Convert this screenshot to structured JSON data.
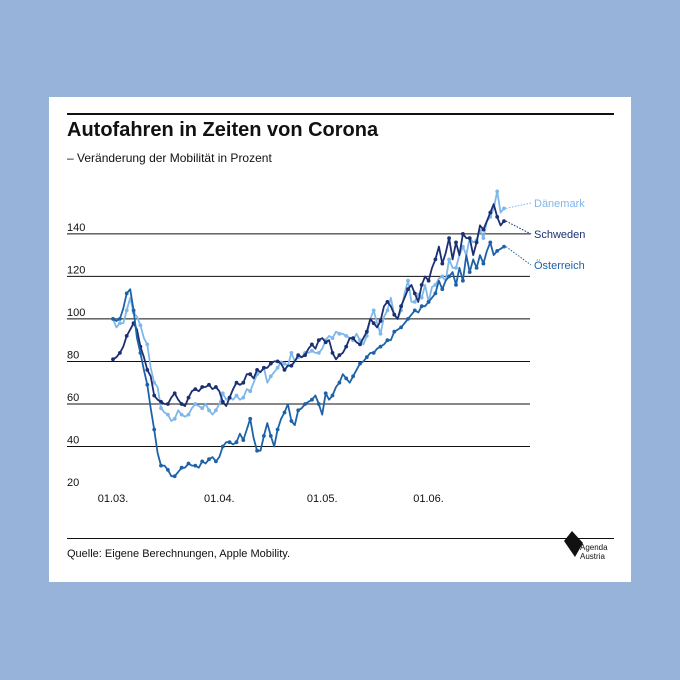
{
  "chart_data": {
    "type": "line",
    "title": "Autofahren in Zeiten von Corona",
    "subtitle": "– Veränderung der Mobilität in Prozent",
    "source": "Quelle: Eigene Berechnungen, Apple Mobility.",
    "ylim": [
      20,
      150
    ],
    "yticks": [
      20,
      40,
      60,
      80,
      100,
      120,
      140
    ],
    "xticks": [
      {
        "label": "01.03.",
        "day": 0
      },
      {
        "label": "01.04.",
        "day": 31
      },
      {
        "label": "01.05.",
        "day": 61
      },
      {
        "label": "01.06.",
        "day": 92
      }
    ],
    "grid": true,
    "legend": "right, at line ends",
    "series": [
      {
        "name": "Dänemark",
        "color": "#7fb7ea",
        "values": [
          100,
          96,
          98,
          98,
          104,
          110,
          103,
          101,
          97,
          91,
          88,
          77,
          70,
          68,
          58,
          56,
          55,
          52,
          53,
          57,
          55,
          54,
          55,
          58,
          60,
          59,
          58,
          60,
          57,
          55,
          57,
          60,
          65,
          62,
          63,
          62,
          64,
          62,
          63,
          67,
          66,
          70,
          74,
          75,
          77,
          70,
          73,
          75,
          77,
          80,
          79,
          78,
          84,
          80,
          82,
          82,
          84,
          84,
          85,
          84,
          84,
          86,
          90,
          92,
          91,
          94,
          93,
          93,
          92,
          91,
          90,
          93,
          90,
          88,
          92,
          100,
          104,
          98,
          93,
          101,
          104,
          110,
          102,
          100,
          104,
          112,
          118,
          108,
          108,
          112,
          110,
          116,
          108,
          115,
          116,
          119,
          120,
          118,
          128,
          124,
          124,
          130,
          134,
          130,
          138,
          136,
          137,
          142,
          138,
          146,
          148,
          152,
          160,
          150,
          152
        ]
      },
      {
        "name": "Schweden",
        "color": "#1b2f73",
        "values": [
          81,
          82,
          84,
          87,
          92,
          95,
          98,
          95,
          87,
          82,
          76,
          73,
          64,
          62,
          61,
          60,
          60,
          63,
          65,
          62,
          60,
          59,
          63,
          66,
          67,
          66,
          68,
          68,
          69,
          67,
          68,
          66,
          61,
          59,
          63,
          67,
          70,
          69,
          70,
          74,
          74,
          72,
          76,
          75,
          77,
          77,
          79,
          80,
          80,
          79,
          76,
          78,
          78,
          80,
          83,
          82,
          83,
          86,
          88,
          86,
          90,
          91,
          89,
          90,
          84,
          81,
          83,
          84,
          87,
          91,
          91,
          89,
          88,
          91,
          94,
          100,
          98,
          96,
          99,
          106,
          108,
          106,
          102,
          100,
          106,
          110,
          114,
          116,
          112,
          108,
          116,
          120,
          118,
          124,
          128,
          134,
          126,
          131,
          138,
          128,
          136,
          130,
          140,
          138,
          138,
          130,
          136,
          144,
          142,
          146,
          150,
          154,
          148,
          144,
          146
        ]
      },
      {
        "name": "Österreich",
        "color": "#1d62a8",
        "values": [
          100,
          99,
          100,
          105,
          112,
          114,
          104,
          91,
          84,
          76,
          69,
          58,
          48,
          37,
          31,
          31,
          29,
          26,
          26,
          28,
          30,
          30,
          32,
          31,
          31,
          30,
          33,
          32,
          34,
          35,
          33,
          35,
          40,
          42,
          42,
          41,
          42,
          46,
          43,
          48,
          53,
          44,
          38,
          38,
          45,
          51,
          45,
          40,
          48,
          53,
          56,
          60,
          52,
          50,
          57,
          58,
          60,
          61,
          62,
          64,
          60,
          55,
          65,
          62,
          64,
          68,
          70,
          74,
          72,
          70,
          73,
          76,
          79,
          80,
          82,
          84,
          84,
          86,
          87,
          88,
          90,
          90,
          94,
          95,
          96,
          98,
          100,
          102,
          104,
          103,
          106,
          106,
          108,
          110,
          112,
          118,
          114,
          118,
          120,
          122,
          116,
          124,
          118,
          130,
          122,
          128,
          124,
          130,
          126,
          132,
          136,
          130,
          132,
          133,
          134
        ]
      }
    ]
  },
  "logo": {
    "line1": "Agenda",
    "line2": "Austria"
  }
}
